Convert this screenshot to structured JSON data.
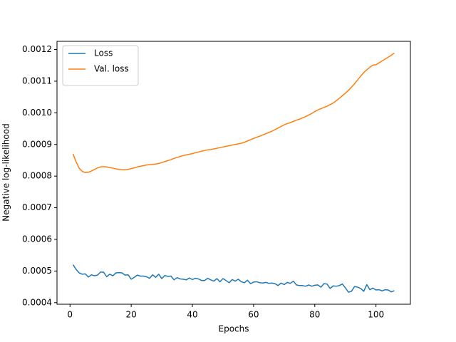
{
  "chart_data": {
    "type": "line",
    "xlabel": "Epochs",
    "ylabel": "Negative log-likelihood",
    "x": [
      1,
      2,
      3,
      4,
      5,
      6,
      7,
      8,
      9,
      10,
      11,
      12,
      13,
      14,
      15,
      16,
      17,
      18,
      19,
      20,
      21,
      22,
      23,
      24,
      25,
      26,
      27,
      28,
      29,
      30,
      31,
      32,
      33,
      34,
      35,
      36,
      37,
      38,
      39,
      40,
      41,
      42,
      43,
      44,
      45,
      46,
      47,
      48,
      49,
      50,
      51,
      52,
      53,
      54,
      55,
      56,
      57,
      58,
      59,
      60,
      61,
      62,
      63,
      64,
      65,
      66,
      67,
      68,
      69,
      70,
      71,
      72,
      73,
      74,
      75,
      76,
      77,
      78,
      79,
      80,
      81,
      82,
      83,
      84,
      85,
      86,
      87,
      88,
      89,
      90,
      91,
      92,
      93,
      94,
      95,
      96,
      97,
      98,
      99,
      100,
      101,
      102,
      103,
      104,
      105,
      106
    ],
    "series": [
      {
        "name": "Loss",
        "color": "#1f77b4",
        "values": [
          0.00052,
          0.000505,
          0.000494,
          0.00049,
          0.000491,
          0.000481,
          0.000488,
          0.000485,
          0.000487,
          0.000497,
          0.000496,
          0.000482,
          0.00049,
          0.000485,
          0.000494,
          0.000495,
          0.000494,
          0.000487,
          0.000488,
          0.000474,
          0.00048,
          0.000487,
          0.000484,
          0.000484,
          0.000482,
          0.000477,
          0.000488,
          0.00048,
          0.00049,
          0.000476,
          0.000486,
          0.000483,
          0.000484,
          0.000472,
          0.000479,
          0.000475,
          0.000474,
          0.000472,
          0.000478,
          0.000473,
          0.000477,
          0.000475,
          0.00047,
          0.00047,
          0.000477,
          0.000472,
          0.000468,
          0.000476,
          0.000466,
          0.000476,
          0.00047,
          0.000463,
          0.000473,
          0.000468,
          0.000474,
          0.000466,
          0.000463,
          0.000471,
          0.00046,
          0.000465,
          0.000466,
          0.000463,
          0.000462,
          0.000464,
          0.000461,
          0.000462,
          0.00046,
          0.000454,
          0.000462,
          0.000457,
          0.000464,
          0.000461,
          0.000468,
          0.000456,
          0.000454,
          0.000454,
          0.000452,
          0.000456,
          0.000452,
          0.000455,
          0.000456,
          0.000449,
          0.00046,
          0.000459,
          0.000445,
          0.000453,
          0.000452,
          0.000454,
          0.000459,
          0.000447,
          0.000433,
          0.000436,
          0.000451,
          0.000449,
          0.000445,
          0.000436,
          0.000457,
          0.000441,
          0.000446,
          0.00044,
          0.000441,
          0.000437,
          0.000441,
          0.00044,
          0.000434,
          0.000438
        ]
      },
      {
        "name": "Val. loss",
        "color": "#ff7f0e",
        "values": [
          0.00087,
          0.000845,
          0.000825,
          0.000815,
          0.000811,
          0.000812,
          0.000816,
          0.000821,
          0.000826,
          0.000829,
          0.00083,
          0.000829,
          0.000827,
          0.000825,
          0.000823,
          0.000821,
          0.00082,
          0.00082,
          0.000821,
          0.000824,
          0.000826,
          0.000829,
          0.000831,
          0.000833,
          0.000835,
          0.000836,
          0.000837,
          0.000838,
          0.00084,
          0.000843,
          0.000846,
          0.000849,
          0.000852,
          0.000856,
          0.000859,
          0.000862,
          0.000865,
          0.000867,
          0.000869,
          0.000871,
          0.000874,
          0.000876,
          0.000879,
          0.000881,
          0.000883,
          0.000884,
          0.000886,
          0.000888,
          0.00089,
          0.000892,
          0.000894,
          0.000896,
          0.000898,
          0.0009,
          0.000902,
          0.000904,
          0.000907,
          0.000911,
          0.000915,
          0.000919,
          0.000923,
          0.000926,
          0.00093,
          0.000934,
          0.000938,
          0.000942,
          0.000947,
          0.000952,
          0.000957,
          0.000962,
          0.000966,
          0.000969,
          0.000973,
          0.000977,
          0.00098,
          0.000984,
          0.000988,
          0.000993,
          0.000998,
          0.001004,
          0.001009,
          0.001013,
          0.001017,
          0.001021,
          0.001026,
          0.001031,
          0.001038,
          0.001046,
          0.001054,
          0.001062,
          0.001071,
          0.001081,
          0.001092,
          0.001104,
          0.001116,
          0.001127,
          0.001136,
          0.001144,
          0.001151,
          0.001152,
          0.001158,
          0.001164,
          0.00117,
          0.001176,
          0.001182,
          0.001189
        ]
      }
    ],
    "xlim": [
      -4.25,
      111.25
    ],
    "xticks": [
      0,
      20,
      40,
      60,
      80,
      100
    ],
    "ylim": [
      0.000395,
      0.001226
    ],
    "yticks": [
      0.0004,
      0.0005,
      0.0006,
      0.0007,
      0.0008,
      0.0009,
      {
        "value": 0.001,
        "label": "0.0010"
      },
      0.0011,
      0.0012
    ],
    "grid": false,
    "legend": "upper-left"
  }
}
